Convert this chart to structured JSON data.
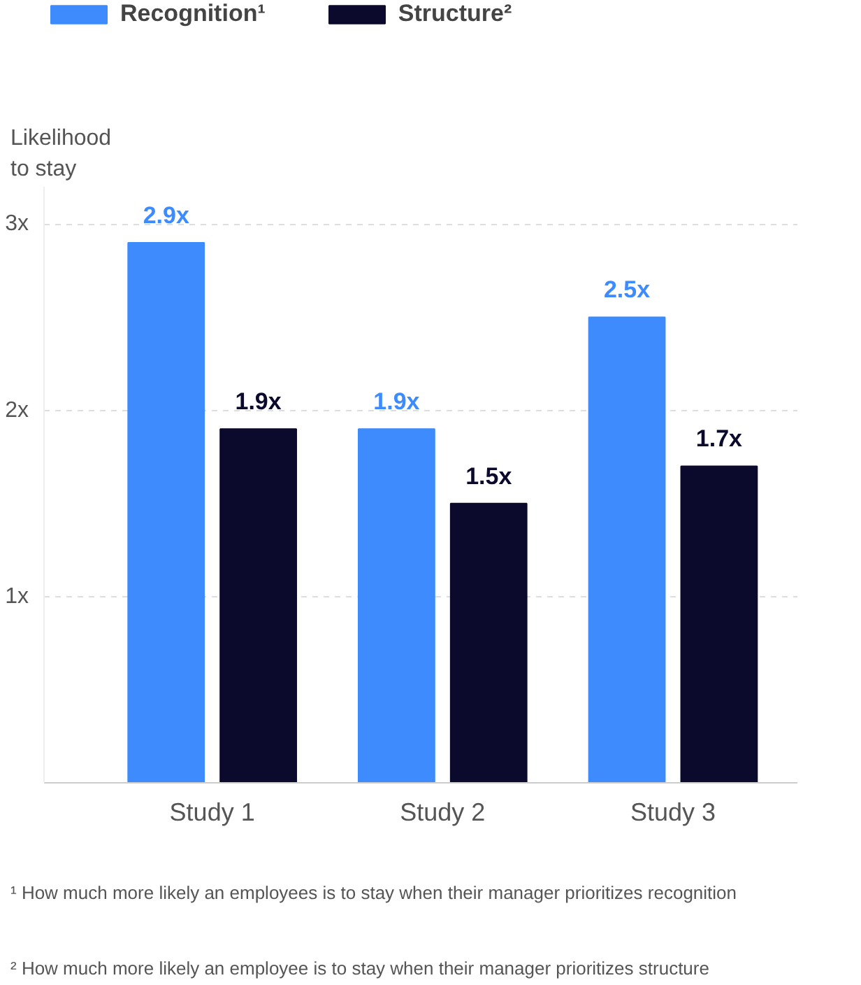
{
  "chart_data": {
    "type": "bar",
    "ylabel": "Likelihood to stay",
    "categories": [
      "Study 1",
      "Study 2",
      "Study 3"
    ],
    "series": [
      {
        "name": "Recognition¹",
        "color": "#3d8bfd",
        "values": [
          2.9,
          1.9,
          2.5
        ]
      },
      {
        "name": "Structure²",
        "color": "#0b0a2c",
        "values": [
          1.9,
          1.5,
          1.7
        ]
      }
    ],
    "ylim": [
      0,
      3.2
    ],
    "yticks": [
      {
        "value": 0,
        "label": null
      },
      {
        "value": 1,
        "label": "1x"
      },
      {
        "value": 2,
        "label": "2x"
      },
      {
        "value": 3,
        "label": "3x"
      }
    ],
    "value_labels": [
      [
        "2.9x",
        "1.9x",
        "2.5x"
      ],
      [
        "1.9x",
        "1.5x",
        "1.7x"
      ]
    ],
    "grid": "y",
    "legend": "top left",
    "annotations": [
      "¹ How much more likely an employees is to stay when their manager prioritizes recognition",
      "² How much more likely an employee is to stay when their manager prioritizes structure"
    ]
  }
}
